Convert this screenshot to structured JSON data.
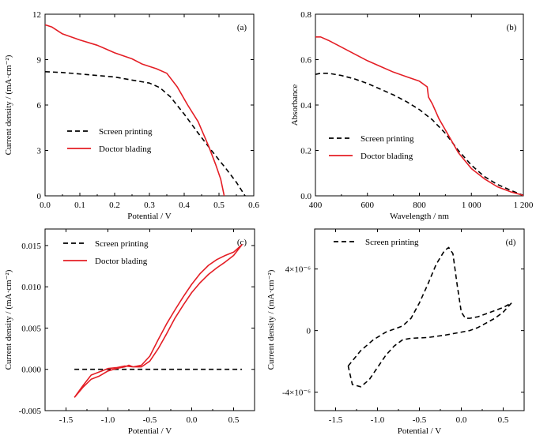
{
  "colors": {
    "screen_printing": "#000000",
    "doctor_blading": "#e41e25"
  },
  "chart_data": [
    {
      "panel": "(a)",
      "type": "line",
      "xlabel": "Potential / V",
      "ylabel": "Current density / (mA·cm⁻²)",
      "xlim": [
        0,
        0.6
      ],
      "ylim": [
        0,
        12
      ],
      "xticks": [
        0.0,
        0.1,
        0.2,
        0.3,
        0.4,
        0.5,
        0.6
      ],
      "xtick_labels": [
        "0.0",
        "0.1",
        "0.2",
        "0.3",
        "0.4",
        "0.5",
        "0.6"
      ],
      "yticks": [
        0,
        3,
        6,
        9,
        12
      ],
      "ytick_labels": [
        "0",
        "3",
        "6",
        "9",
        "12"
      ],
      "grid": false,
      "legend_position": "lower-left",
      "series": [
        {
          "name": "Screen printing",
          "style": "dashed",
          "color": "#000000",
          "points": [
            [
              0.0,
              8.2
            ],
            [
              0.05,
              8.15
            ],
            [
              0.1,
              8.05
            ],
            [
              0.15,
              7.95
            ],
            [
              0.2,
              7.85
            ],
            [
              0.25,
              7.65
            ],
            [
              0.3,
              7.45
            ],
            [
              0.33,
              7.15
            ],
            [
              0.36,
              6.55
            ],
            [
              0.4,
              5.4
            ],
            [
              0.44,
              4.15
            ],
            [
              0.48,
              2.95
            ],
            [
              0.52,
              1.8
            ],
            [
              0.55,
              0.9
            ],
            [
              0.575,
              0.0
            ]
          ]
        },
        {
          "name": "Doctor blading",
          "style": "solid",
          "color": "#e41e25",
          "points": [
            [
              0.0,
              11.3
            ],
            [
              0.02,
              11.15
            ],
            [
              0.05,
              10.7
            ],
            [
              0.1,
              10.3
            ],
            [
              0.15,
              9.95
            ],
            [
              0.2,
              9.45
            ],
            [
              0.25,
              9.05
            ],
            [
              0.28,
              8.7
            ],
            [
              0.32,
              8.4
            ],
            [
              0.35,
              8.1
            ],
            [
              0.38,
              7.2
            ],
            [
              0.41,
              6.0
            ],
            [
              0.44,
              4.9
            ],
            [
              0.47,
              3.3
            ],
            [
              0.49,
              2.1
            ],
            [
              0.505,
              1.1
            ],
            [
              0.515,
              0.0
            ]
          ]
        }
      ]
    },
    {
      "panel": "(b)",
      "type": "line",
      "xlabel": "Wavelength / nm",
      "ylabel": "Absorbance",
      "xlim": [
        400,
        1200
      ],
      "ylim": [
        0,
        0.8
      ],
      "xticks": [
        400,
        600,
        800,
        1000,
        1200
      ],
      "xtick_labels": [
        "400",
        "600",
        "800",
        "1 000",
        "1 200"
      ],
      "yticks": [
        0.0,
        0.2,
        0.4,
        0.6,
        0.8
      ],
      "ytick_labels": [
        "0.0",
        "0.2",
        "0.4",
        "0.6",
        "0.8"
      ],
      "grid": false,
      "legend_position": "lower-left",
      "series": [
        {
          "name": "Screen printing",
          "style": "dashed",
          "color": "#000000",
          "points": [
            [
              400,
              0.535
            ],
            [
              420,
              0.54
            ],
            [
              450,
              0.54
            ],
            [
              500,
              0.53
            ],
            [
              550,
              0.515
            ],
            [
              600,
              0.495
            ],
            [
              650,
              0.47
            ],
            [
              700,
              0.445
            ],
            [
              750,
              0.415
            ],
            [
              800,
              0.38
            ],
            [
              850,
              0.335
            ],
            [
              900,
              0.275
            ],
            [
              950,
              0.2
            ],
            [
              1000,
              0.135
            ],
            [
              1050,
              0.085
            ],
            [
              1100,
              0.05
            ],
            [
              1150,
              0.025
            ],
            [
              1200,
              0.002
            ]
          ]
        },
        {
          "name": "Doctor blading",
          "style": "solid",
          "color": "#e41e25",
          "points": [
            [
              400,
              0.7
            ],
            [
              420,
              0.7
            ],
            [
              450,
              0.685
            ],
            [
              500,
              0.655
            ],
            [
              550,
              0.625
            ],
            [
              600,
              0.595
            ],
            [
              650,
              0.57
            ],
            [
              700,
              0.545
            ],
            [
              750,
              0.525
            ],
            [
              800,
              0.505
            ],
            [
              830,
              0.48
            ],
            [
              835,
              0.435
            ],
            [
              850,
              0.405
            ],
            [
              875,
              0.34
            ],
            [
              900,
              0.29
            ],
            [
              950,
              0.19
            ],
            [
              1000,
              0.12
            ],
            [
              1050,
              0.075
            ],
            [
              1100,
              0.04
            ],
            [
              1150,
              0.018
            ],
            [
              1200,
              0.002
            ]
          ]
        }
      ]
    },
    {
      "panel": "(c)",
      "type": "line",
      "xlabel": "Potential / V",
      "ylabel": "Current density / (mA·cm⁻²)",
      "xlim": [
        -1.75,
        0.75
      ],
      "ylim": [
        -0.005,
        0.017
      ],
      "xticks": [
        -1.5,
        -1.0,
        -0.5,
        0.0,
        0.5
      ],
      "xtick_labels": [
        "-1.5",
        "-1.0",
        "-0.5",
        "0.0",
        "0.5"
      ],
      "yticks": [
        -0.005,
        0.0,
        0.005,
        0.01,
        0.015
      ],
      "ytick_labels": [
        "-0.005",
        "0.000",
        "0.005",
        "0.010",
        "0.015"
      ],
      "grid": false,
      "legend_position": "top-left",
      "series": [
        {
          "name": "Screen printing",
          "style": "dashed",
          "color": "#000000",
          "points": [
            [
              -1.4,
              0.0
            ],
            [
              -1.0,
              0.0
            ],
            [
              -0.5,
              0.0
            ],
            [
              0.0,
              0.0
            ],
            [
              0.5,
              0.0
            ],
            [
              0.6,
              0.0
            ]
          ]
        },
        {
          "name": "Doctor blading",
          "style": "solid",
          "color": "#e41e25",
          "points": [
            [
              -1.4,
              -0.0034
            ],
            [
              -1.3,
              -0.002
            ],
            [
              -1.2,
              -0.0007
            ],
            [
              -1.1,
              -0.0003
            ],
            [
              -1.0,
              0.0001
            ],
            [
              -0.9,
              0.0002
            ],
            [
              -0.8,
              0.0004
            ],
            [
              -0.7,
              0.0003
            ],
            [
              -0.6,
              0.0003
            ],
            [
              -0.5,
              0.001
            ],
            [
              -0.4,
              0.0025
            ],
            [
              -0.3,
              0.0043
            ],
            [
              -0.2,
              0.0062
            ],
            [
              -0.1,
              0.0078
            ],
            [
              0.0,
              0.0093
            ],
            [
              0.1,
              0.0105
            ],
            [
              0.2,
              0.0115
            ],
            [
              0.3,
              0.0123
            ],
            [
              0.4,
              0.013
            ],
            [
              0.5,
              0.0138
            ],
            [
              0.6,
              0.0151
            ],
            [
              0.5,
              0.0142
            ],
            [
              0.4,
              0.0138
            ],
            [
              0.3,
              0.0133
            ],
            [
              0.2,
              0.0126
            ],
            [
              0.1,
              0.0116
            ],
            [
              0.0,
              0.0103
            ],
            [
              -0.1,
              0.0088
            ],
            [
              -0.2,
              0.0072
            ],
            [
              -0.3,
              0.0055
            ],
            [
              -0.4,
              0.0036
            ],
            [
              -0.5,
              0.0016
            ],
            [
              -0.6,
              0.0005
            ],
            [
              -0.7,
              0.0003
            ],
            [
              -0.75,
              0.0005
            ],
            [
              -0.8,
              0.0003
            ],
            [
              -0.9,
              0.0001
            ],
            [
              -1.0,
              -0.0002
            ],
            [
              -1.1,
              -0.0008
            ],
            [
              -1.2,
              -0.0012
            ],
            [
              -1.3,
              -0.0022
            ],
            [
              -1.4,
              -0.0034
            ]
          ]
        }
      ]
    },
    {
      "panel": "(d)",
      "type": "line",
      "xlabel": "Potential / V",
      "ylabel": "Current density / (mA·cm⁻²)",
      "xlim": [
        -1.75,
        0.75
      ],
      "ylim": [
        -5.2e-06,
        6.6e-06
      ],
      "xticks": [
        -1.5,
        -1.0,
        -0.5,
        0.0,
        0.5
      ],
      "xtick_labels": [
        "-1.5",
        "-1.0",
        "-0.5",
        "0.0",
        "0.5"
      ],
      "yticks": [
        -4e-06,
        0,
        4e-06
      ],
      "ytick_labels": [
        "-4×10⁻⁶",
        "0",
        "4×10⁻⁶"
      ],
      "grid": false,
      "legend_position": "top-left",
      "series": [
        {
          "name": "Screen printing",
          "style": "dashed",
          "color": "#000000",
          "points": [
            [
              -1.35,
              -2.3e-06
            ],
            [
              -1.2,
              -1.3e-06
            ],
            [
              -1.05,
              -6e-07
            ],
            [
              -0.9,
              -1e-07
            ],
            [
              -0.8,
              1e-07
            ],
            [
              -0.7,
              3e-07
            ],
            [
              -0.6,
              8e-07
            ],
            [
              -0.5,
              1.8e-06
            ],
            [
              -0.4,
              3e-06
            ],
            [
              -0.3,
              4.3e-06
            ],
            [
              -0.2,
              5.2e-06
            ],
            [
              -0.15,
              5.4e-06
            ],
            [
              -0.1,
              5e-06
            ],
            [
              -0.05,
              3e-06
            ],
            [
              0.0,
              1.2e-06
            ],
            [
              0.05,
              8e-07
            ],
            [
              0.1,
              8e-07
            ],
            [
              0.2,
              9e-07
            ],
            [
              0.3,
              1.1e-06
            ],
            [
              0.4,
              1.3e-06
            ],
            [
              0.5,
              1.5e-06
            ],
            [
              0.6,
              1.8e-06
            ],
            [
              0.5,
              1.2e-06
            ],
            [
              0.4,
              8e-07
            ],
            [
              0.3,
              5e-07
            ],
            [
              0.2,
              2e-07
            ],
            [
              0.1,
              0.0
            ],
            [
              0.0,
              -1e-07
            ],
            [
              -0.2,
              -3e-07
            ],
            [
              -0.4,
              -4.5e-07
            ],
            [
              -0.6,
              -5e-07
            ],
            [
              -0.7,
              -6e-07
            ],
            [
              -0.8,
              -1e-06
            ],
            [
              -0.9,
              -1.6e-06
            ],
            [
              -1.0,
              -2.4e-06
            ],
            [
              -1.1,
              -3.2e-06
            ],
            [
              -1.2,
              -3.65e-06
            ],
            [
              -1.3,
              -3.5e-06
            ],
            [
              -1.35,
              -2.3e-06
            ]
          ]
        }
      ]
    }
  ]
}
